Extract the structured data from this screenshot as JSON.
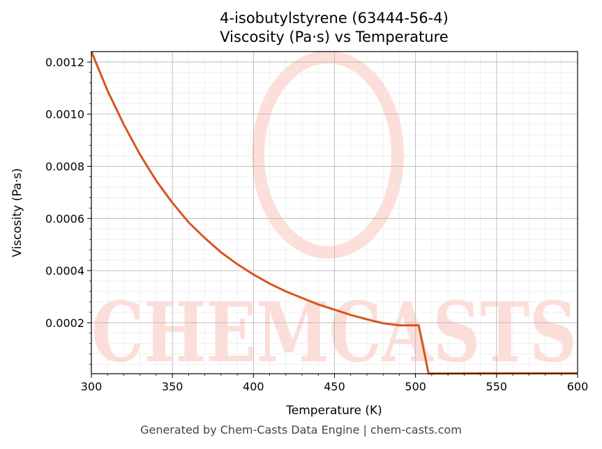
{
  "chart_data": {
    "type": "line",
    "title_line1": "4-isobutylstyrene (63444-56-4)",
    "title_line2": "Viscosity (Pa·s) vs Temperature",
    "xlabel": "Temperature (K)",
    "ylabel": "Viscosity (Pa·s)",
    "xlim": [
      300,
      600
    ],
    "ylim": [
      4.5e-06,
      0.00124
    ],
    "x_ticks": [
      "300",
      "350",
      "400",
      "450",
      "500",
      "550",
      "600"
    ],
    "y_ticks": [
      "0.0002",
      "0.0004",
      "0.0006",
      "0.0008",
      "0.0010",
      "0.0012"
    ],
    "grid": true,
    "line_color": "#d9541f",
    "series": [
      {
        "x": [
          300,
          310,
          320,
          330,
          340,
          350,
          360,
          370,
          380,
          390,
          400,
          410,
          420,
          430,
          440,
          450,
          460,
          470,
          480,
          490,
          502,
          508,
          510,
          550,
          600
        ],
        "y": [
          0.00124,
          0.00109,
          0.00096,
          0.000845,
          0.000745,
          0.00066,
          0.000585,
          0.000525,
          0.00047,
          0.000425,
          0.000385,
          0.00035,
          0.00032,
          0.000295,
          0.00027,
          0.00025,
          0.00023,
          0.000213,
          0.000198,
          0.00019,
          0.00019,
          5e-06,
          5e-06,
          6e-06,
          6e-06
        ]
      }
    ]
  },
  "watermark": {
    "text": "CHEMCASTS",
    "color": "#fdd8d2"
  },
  "footer": "Generated by Chem-Casts Data Engine | chem-casts.com"
}
